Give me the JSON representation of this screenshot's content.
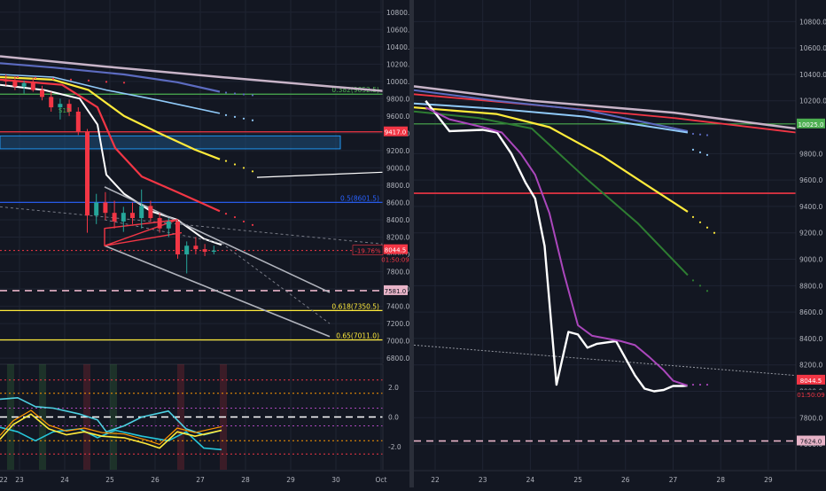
{
  "chart_data": [
    {
      "type": "candlestick",
      "title": "",
      "x_ticks": [
        "22",
        "23",
        "24",
        "25",
        "26",
        "27",
        "28",
        "29",
        "30",
        "Oct"
      ],
      "y_ticks": [
        6800,
        7000,
        7200,
        7400,
        7600,
        7800,
        8000,
        8200,
        8400,
        8600,
        8800,
        9000,
        9200,
        9400,
        9600,
        9800,
        10000,
        10200,
        10400,
        10600,
        10800
      ],
      "ylim": [
        6750,
        10900
      ],
      "last_price": "8044.5",
      "countdown": "01:50:09",
      "change": "-19.76%",
      "horizontal_levels": [
        {
          "label": "0.382(9852.5)",
          "value": 9852.5,
          "color": "#4caf50"
        },
        {
          "label": "9417.0",
          "value": 9417.0,
          "color": "#f23645"
        },
        {
          "label": "0.5(8601.5)",
          "value": 8601.5,
          "color": "#2962ff"
        },
        {
          "label": "7581.0",
          "value": 7581.0,
          "color": "#e8b4c8"
        },
        {
          "label": "0.618(7350.5)",
          "value": 7350.5,
          "color": "#ffeb3b"
        },
        {
          "label": "0.65(7011.0)",
          "value": 7011.0,
          "color": "#ffeb3b"
        }
      ],
      "annotation": "S13",
      "candles": [
        {
          "day": 22.5,
          "o": 10050,
          "h": 10120,
          "l": 9980,
          "c": 10020
        },
        {
          "day": 22.7,
          "o": 10020,
          "h": 10080,
          "l": 9950,
          "c": 10000
        },
        {
          "day": 22.9,
          "o": 10000,
          "h": 10060,
          "l": 9900,
          "c": 9940
        },
        {
          "day": 23.1,
          "o": 9940,
          "h": 10010,
          "l": 9860,
          "c": 9980
        },
        {
          "day": 23.3,
          "o": 9980,
          "h": 10040,
          "l": 9880,
          "c": 9900
        },
        {
          "day": 23.5,
          "o": 9900,
          "h": 9950,
          "l": 9780,
          "c": 9820
        },
        {
          "day": 23.7,
          "o": 9820,
          "h": 9880,
          "l": 9650,
          "c": 9700
        },
        {
          "day": 23.9,
          "o": 9700,
          "h": 9800,
          "l": 9560,
          "c": 9740
        },
        {
          "day": 24.1,
          "o": 9740,
          "h": 9790,
          "l": 9600,
          "c": 9650
        },
        {
          "day": 24.3,
          "o": 9650,
          "h": 9700,
          "l": 9380,
          "c": 9420
        },
        {
          "day": 24.5,
          "o": 9420,
          "h": 9450,
          "l": 8250,
          "c": 8450
        },
        {
          "day": 24.7,
          "o": 8450,
          "h": 8700,
          "l": 8350,
          "c": 8600
        },
        {
          "day": 24.9,
          "o": 8600,
          "h": 8720,
          "l": 8400,
          "c": 8480
        },
        {
          "day": 25.1,
          "o": 8480,
          "h": 8620,
          "l": 8300,
          "c": 8380
        },
        {
          "day": 25.3,
          "o": 8380,
          "h": 8550,
          "l": 8260,
          "c": 8480
        },
        {
          "day": 25.5,
          "o": 8480,
          "h": 8600,
          "l": 8350,
          "c": 8420
        },
        {
          "day": 25.7,
          "o": 8420,
          "h": 8750,
          "l": 8300,
          "c": 8560
        },
        {
          "day": 25.9,
          "o": 8560,
          "h": 8620,
          "l": 8380,
          "c": 8420
        },
        {
          "day": 26.1,
          "o": 8420,
          "h": 8480,
          "l": 8250,
          "c": 8300
        },
        {
          "day": 26.3,
          "o": 8300,
          "h": 8420,
          "l": 8200,
          "c": 8380
        },
        {
          "day": 26.5,
          "o": 8380,
          "h": 8400,
          "l": 7950,
          "c": 8000
        },
        {
          "day": 26.7,
          "o": 8000,
          "h": 8150,
          "l": 7780,
          "c": 8100
        },
        {
          "day": 26.9,
          "o": 8100,
          "h": 8200,
          "l": 8000,
          "c": 8060
        },
        {
          "day": 27.1,
          "o": 8060,
          "h": 8120,
          "l": 7980,
          "c": 8030
        },
        {
          "day": 27.3,
          "o": 8030,
          "h": 8100,
          "l": 8000,
          "c": 8044.5
        }
      ],
      "indicator": {
        "y_ticks": [
          2.0,
          0.0,
          -2.0
        ],
        "ylim": [
          -3.2,
          3.2
        ]
      }
    },
    {
      "type": "line",
      "title": "",
      "x_ticks": [
        "22",
        "23",
        "24",
        "25",
        "26",
        "27",
        "28",
        "29"
      ],
      "y_ticks": [
        7600,
        7800,
        8000,
        8200,
        8400,
        8600,
        8800,
        9000,
        9200,
        9400,
        9600,
        9800,
        10200,
        10400,
        10600,
        10800
      ],
      "ylim": [
        7500,
        10950
      ],
      "last_price": "8044.5",
      "countdown": "01:50:09",
      "horizontal_levels": [
        {
          "label": "10025.0",
          "value": 10025.0,
          "color": "#4caf50"
        },
        {
          "label": "7624.0",
          "value": 7624.0,
          "color": "#e8b4c8"
        }
      ],
      "red_level": 9500,
      "series": [
        {
          "color": "#ffffff",
          "x": [
            21.8,
            22.3,
            23.0,
            23.3,
            23.6,
            23.9,
            24.1,
            24.3,
            24.55,
            24.8,
            25.0,
            25.2,
            25.4,
            25.6,
            25.8,
            26.0,
            26.2,
            26.4,
            26.6,
            26.8,
            27.0,
            27.2,
            27.3
          ],
          "y": [
            10200,
            9970,
            9980,
            9960,
            9800,
            9580,
            9460,
            9100,
            8050,
            8450,
            8430,
            8330,
            8360,
            8370,
            8380,
            8250,
            8120,
            8020,
            8000,
            8010,
            8040,
            8040,
            8044
          ]
        },
        {
          "color": "#ab47bc",
          "x": [
            21.8,
            22.3,
            23.0,
            23.4,
            23.8,
            24.1,
            24.4,
            24.7,
            25.0,
            25.3,
            25.6,
            25.9,
            26.2,
            26.5,
            26.8,
            27.0,
            27.3
          ],
          "y": [
            10150,
            10060,
            10000,
            9960,
            9800,
            9640,
            9350,
            8900,
            8500,
            8420,
            8400,
            8380,
            8350,
            8260,
            8160,
            8080,
            8044
          ]
        }
      ]
    }
  ]
}
